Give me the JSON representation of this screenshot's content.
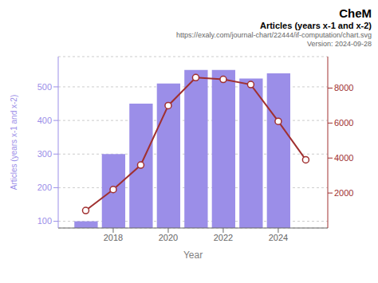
{
  "chart_data": {
    "type": "bar",
    "title": "CheM",
    "subtitle": "Articles (years x-1 and x-2)",
    "annotations": [
      "https://exaly.com/journal-chart/22444/if-computation/chart.svg",
      "Version: 2024-09-28"
    ],
    "x_label": "Year",
    "y_label": "Articles (years x-1 and x-2)",
    "xlim": [
      2016.0,
      2025.8
    ],
    "xticks": [
      2018,
      2020,
      2022,
      2024
    ],
    "ylim": [
      80,
      590
    ],
    "yticks": [
      100,
      200,
      300,
      400,
      500
    ],
    "y2lim": [
      0,
      9800
    ],
    "y2ticks": [
      2000,
      4000,
      6000,
      8000
    ],
    "grid": true,
    "series": [
      {
        "type": "bar",
        "color": "#9b8ee8",
        "x": [
          2017,
          2018,
          2019,
          2020,
          2021,
          2022,
          2023,
          2024
        ],
        "values": [
          100,
          300,
          450,
          510,
          550,
          550,
          525,
          540
        ]
      },
      {
        "type": "line",
        "axis": "y2",
        "color": "#a03030",
        "marker": "circle",
        "x": [
          2017,
          2018,
          2019,
          2020,
          2021,
          2022,
          2023,
          2024,
          2025
        ],
        "values": [
          1000,
          2200,
          3600,
          7000,
          8600,
          8500,
          8200,
          6100,
          3900
        ]
      }
    ]
  }
}
